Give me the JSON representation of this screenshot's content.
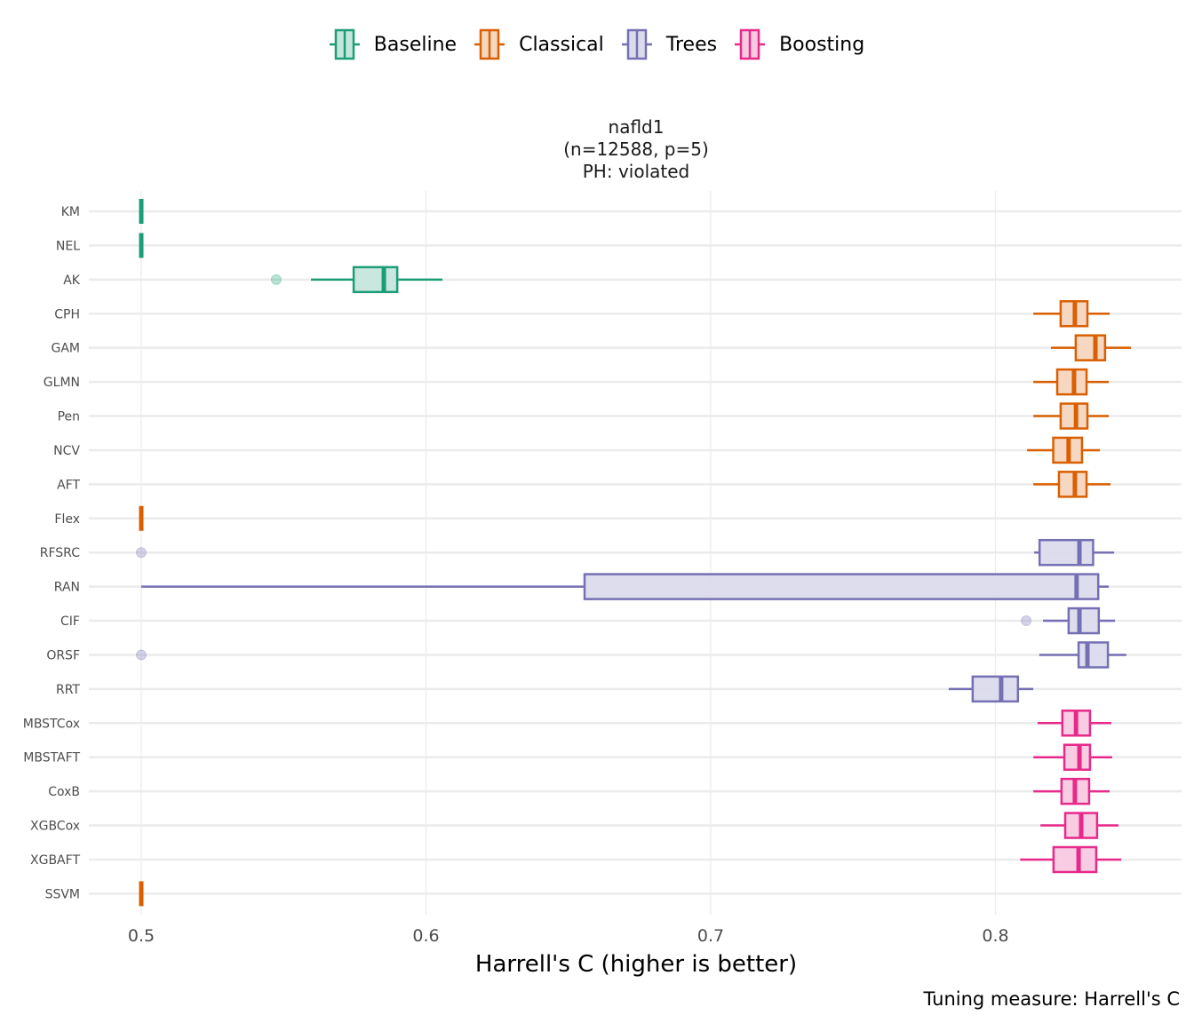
{
  "chart_data": {
    "type": "boxplot",
    "orientation": "horizontal",
    "title_lines": [
      "nafld1",
      "(n=12588, p=5)",
      "PH: violated"
    ],
    "xlabel": "Harrell's C (higher is better)",
    "caption": "Tuning measure: Harrell's C",
    "xlim": [
      0.4825,
      0.8685
    ],
    "xticks": [
      0.5,
      0.6,
      0.7,
      0.8
    ],
    "xtick_labels": [
      "0.5",
      "0.6",
      "0.7",
      "0.8"
    ],
    "grid": true,
    "legend_position": "top",
    "groups": [
      {
        "name": "Baseline",
        "color": "#1B9E77",
        "fill": "#C6E6DC"
      },
      {
        "name": "Classical",
        "color": "#D95F02",
        "fill": "#F5D6BF"
      },
      {
        "name": "Trees",
        "color": "#7570B3",
        "fill": "#DCDBEC"
      },
      {
        "name": "Boosting",
        "color": "#E7298A",
        "fill": "#F8CAE1"
      }
    ],
    "series": [
      {
        "name": "KM",
        "group": "Baseline",
        "whisker_low": 0.5,
        "q1": 0.5,
        "median": 0.5,
        "q3": 0.5,
        "whisker_high": 0.5,
        "outliers": []
      },
      {
        "name": "NEL",
        "group": "Baseline",
        "whisker_low": 0.5,
        "q1": 0.5,
        "median": 0.5,
        "q3": 0.5,
        "whisker_high": 0.5,
        "outliers": []
      },
      {
        "name": "AK",
        "group": "Baseline",
        "whisker_low": 0.5596,
        "q1": 0.5746,
        "median": 0.5852,
        "q3": 0.5899,
        "whisker_high": 0.6058,
        "outliers": [
          0.5474
        ]
      },
      {
        "name": "CPH",
        "group": "Classical",
        "whisker_low": 0.8133,
        "q1": 0.8229,
        "median": 0.8279,
        "q3": 0.8323,
        "whisker_high": 0.8401,
        "outliers": []
      },
      {
        "name": "GAM",
        "group": "Classical",
        "whisker_low": 0.8195,
        "q1": 0.8282,
        "median": 0.8351,
        "q3": 0.8385,
        "whisker_high": 0.8476,
        "outliers": []
      },
      {
        "name": "GLMN",
        "group": "Classical",
        "whisker_low": 0.8133,
        "q1": 0.8217,
        "median": 0.8276,
        "q3": 0.832,
        "whisker_high": 0.8398,
        "outliers": []
      },
      {
        "name": "Pen",
        "group": "Classical",
        "whisker_low": 0.8133,
        "q1": 0.8229,
        "median": 0.8283,
        "q3": 0.8323,
        "whisker_high": 0.8398,
        "outliers": []
      },
      {
        "name": "NCV",
        "group": "Classical",
        "whisker_low": 0.8111,
        "q1": 0.8203,
        "median": 0.8257,
        "q3": 0.8304,
        "whisker_high": 0.8367,
        "outliers": []
      },
      {
        "name": "AFT",
        "group": "Classical",
        "whisker_low": 0.8133,
        "q1": 0.8223,
        "median": 0.8279,
        "q3": 0.832,
        "whisker_high": 0.8404,
        "outliers": []
      },
      {
        "name": "Flex",
        "group": "Classical",
        "whisker_low": 0.5,
        "q1": 0.5,
        "median": 0.5,
        "q3": 0.5,
        "whisker_high": 0.5,
        "outliers": []
      },
      {
        "name": "RFSRC",
        "group": "Trees",
        "whisker_low": 0.8136,
        "q1": 0.8155,
        "median": 0.8295,
        "q3": 0.8343,
        "whisker_high": 0.8417,
        "outliers": [
          0.5
        ]
      },
      {
        "name": "RAN",
        "group": "Trees",
        "whisker_low": 0.5,
        "q1": 0.6557,
        "median": 0.8285,
        "q3": 0.8361,
        "whisker_high": 0.8398,
        "outliers": []
      },
      {
        "name": "CIF",
        "group": "Trees",
        "whisker_low": 0.8167,
        "q1": 0.8257,
        "median": 0.8295,
        "q3": 0.8363,
        "whisker_high": 0.842,
        "outliers": [
          0.8108
        ]
      },
      {
        "name": "ORSF",
        "group": "Trees",
        "whisker_low": 0.8154,
        "q1": 0.8292,
        "median": 0.8323,
        "q3": 0.8395,
        "whisker_high": 0.846,
        "outliers": [
          0.5
        ]
      },
      {
        "name": "RRT",
        "group": "Trees",
        "whisker_low": 0.7836,
        "q1": 0.792,
        "median": 0.802,
        "q3": 0.8079,
        "whisker_high": 0.8133,
        "outliers": []
      },
      {
        "name": "MBSTCox",
        "group": "Boosting",
        "whisker_low": 0.8148,
        "q1": 0.8235,
        "median": 0.8283,
        "q3": 0.8332,
        "whisker_high": 0.8407,
        "outliers": []
      },
      {
        "name": "MBSTAFT",
        "group": "Boosting",
        "whisker_low": 0.8133,
        "q1": 0.8242,
        "median": 0.8295,
        "q3": 0.8332,
        "whisker_high": 0.841,
        "outliers": []
      },
      {
        "name": "CoxB",
        "group": "Boosting",
        "whisker_low": 0.8133,
        "q1": 0.8232,
        "median": 0.8279,
        "q3": 0.8329,
        "whisker_high": 0.8401,
        "outliers": []
      },
      {
        "name": "XGBCox",
        "group": "Boosting",
        "whisker_low": 0.8158,
        "q1": 0.8245,
        "median": 0.8301,
        "q3": 0.8357,
        "whisker_high": 0.8432,
        "outliers": []
      },
      {
        "name": "XGBAFT",
        "group": "Boosting",
        "whisker_low": 0.8087,
        "q1": 0.8204,
        "median": 0.8292,
        "q3": 0.8354,
        "whisker_high": 0.8442,
        "outliers": []
      },
      {
        "name": "SSVM",
        "group": "Classical",
        "whisker_low": 0.5,
        "q1": 0.5,
        "median": 0.5,
        "q3": 0.5,
        "whisker_high": 0.5,
        "outliers": []
      }
    ]
  }
}
